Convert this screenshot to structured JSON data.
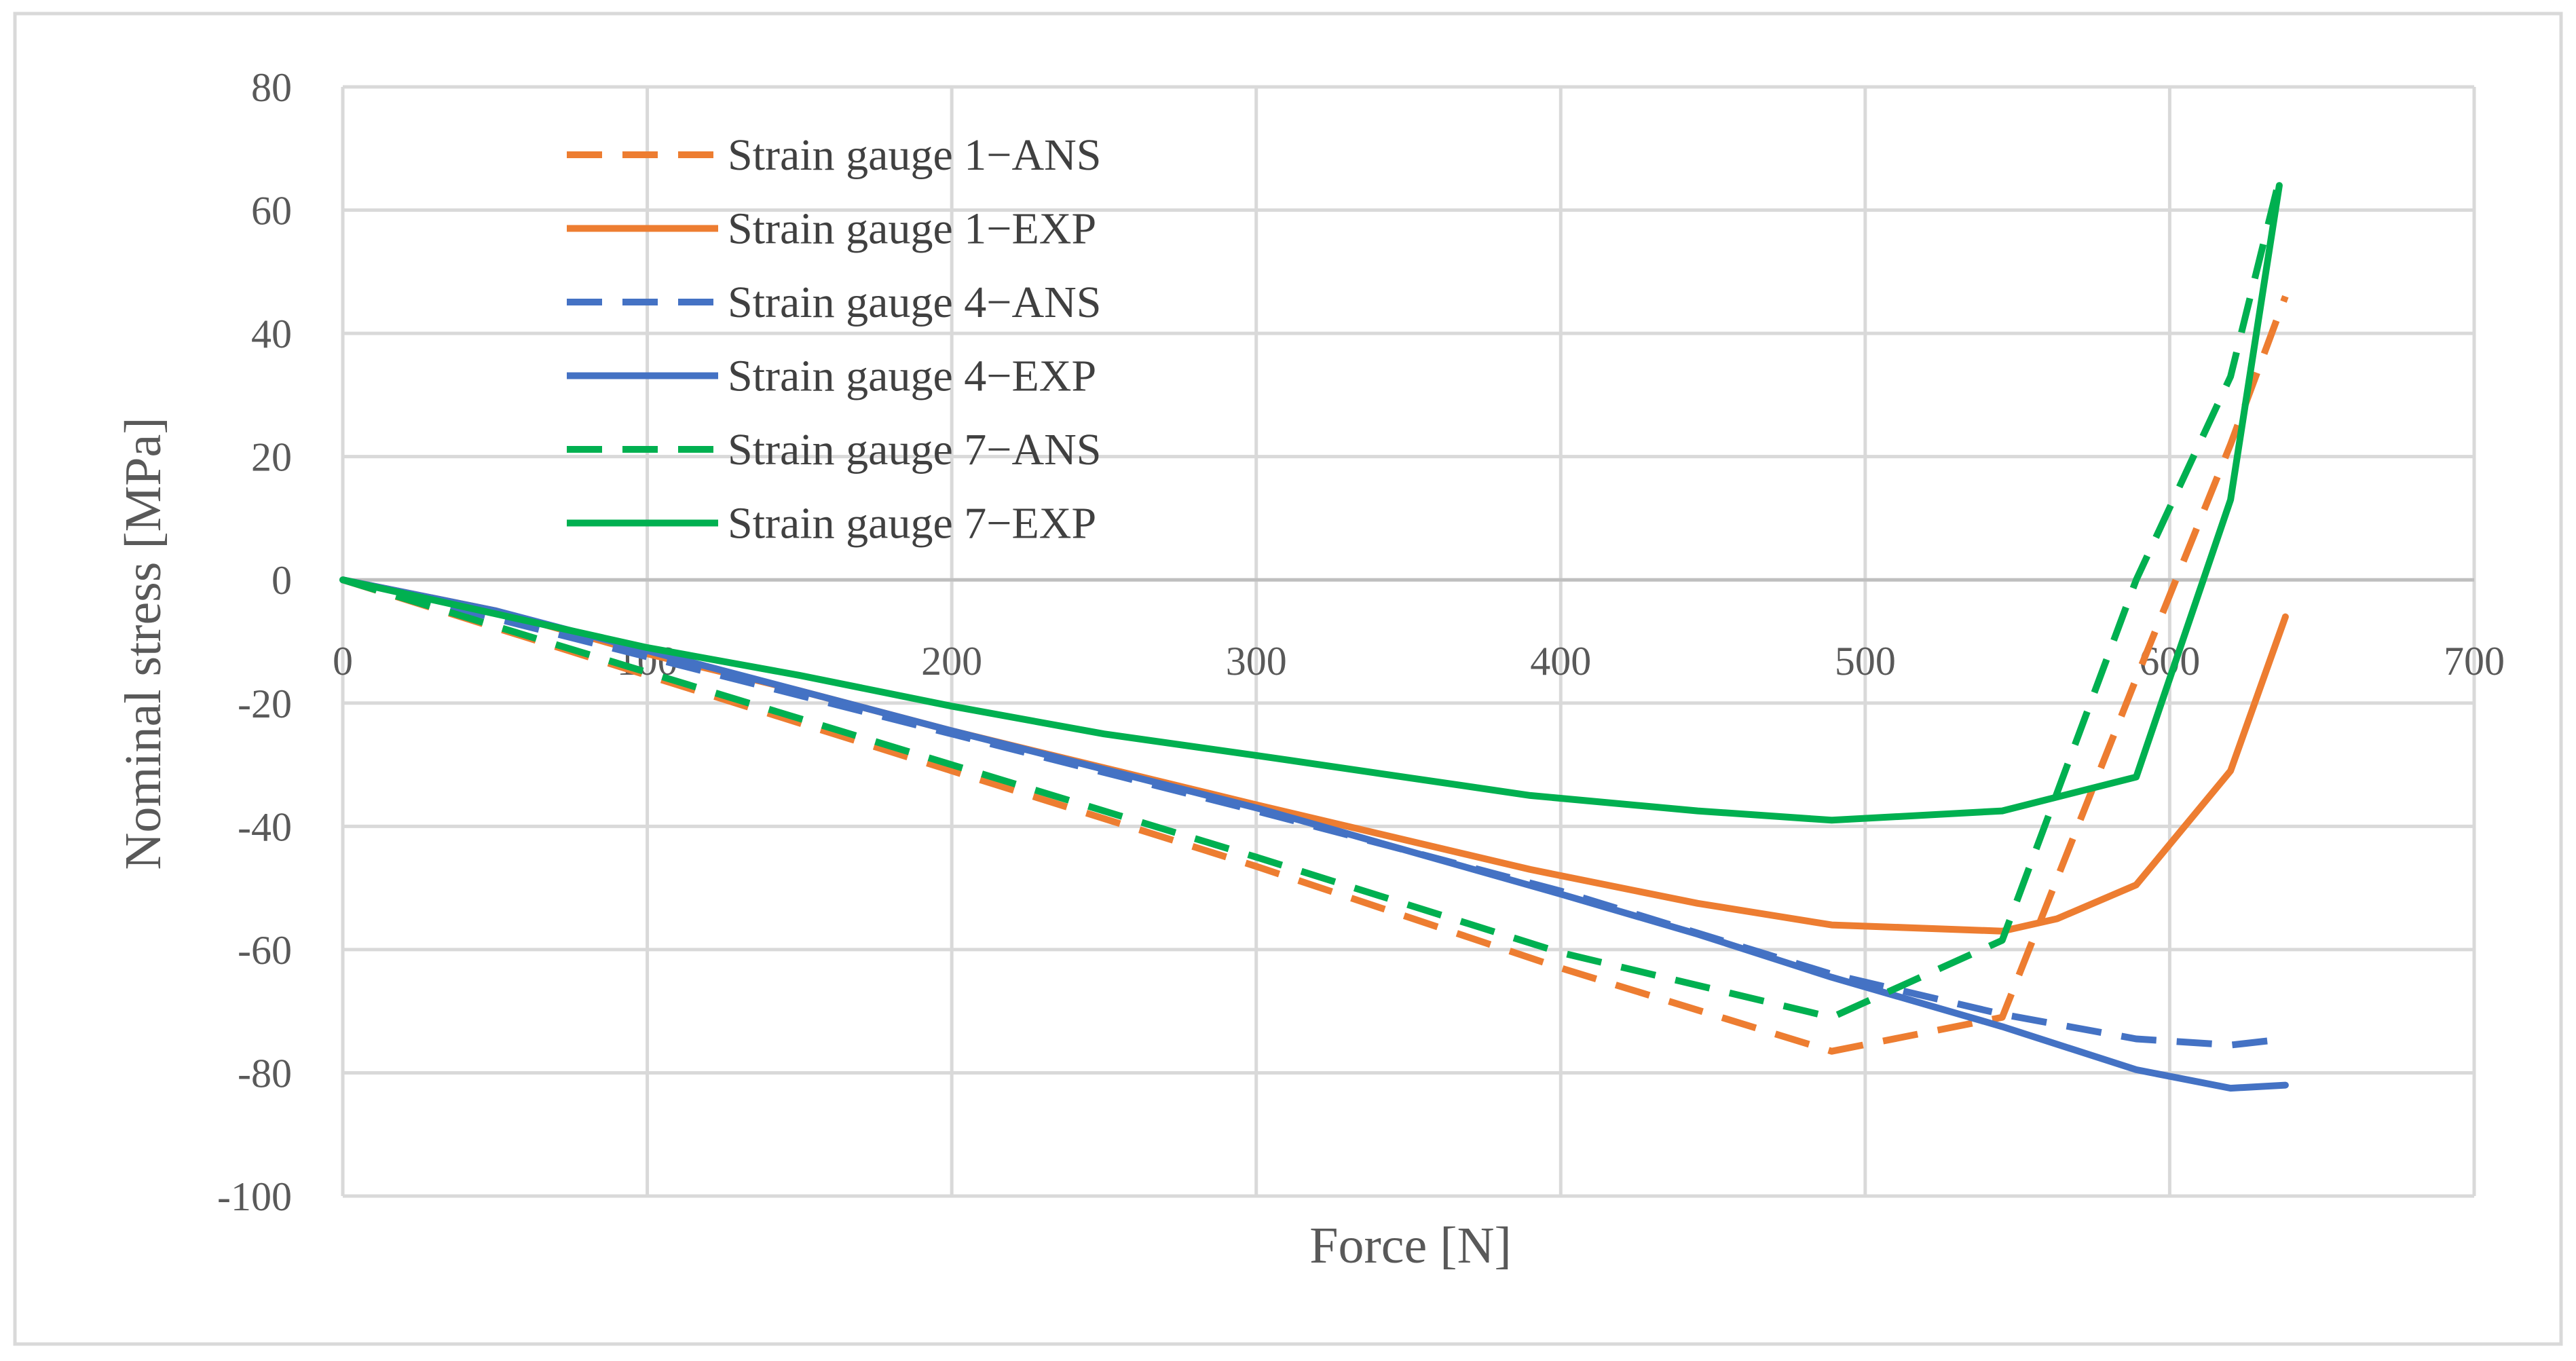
{
  "chart_data": {
    "type": "line",
    "title": "",
    "xlabel": "Force [N]",
    "ylabel": "Nominal stress [MPa]",
    "xlim": [
      0,
      700
    ],
    "ylim": [
      -100,
      80
    ],
    "xticks": [
      0,
      100,
      200,
      300,
      400,
      500,
      600,
      700
    ],
    "yticks": [
      80,
      60,
      40,
      20,
      0,
      -20,
      -40,
      -60,
      -80,
      -100
    ],
    "xtick_labels": [
      "0",
      "100",
      "200",
      "300",
      "400",
      "500",
      "600",
      "700"
    ],
    "ytick_labels": [
      "80",
      "60",
      "40",
      "20",
      "0",
      "-20",
      "-40",
      "-60",
      "-80",
      "-100"
    ],
    "grid": true,
    "legend_position": "top-left",
    "series": [
      {
        "name": "Strain gauge 1−ANS",
        "color": "#ED7D31",
        "dash": "dashed",
        "points": [
          [
            0,
            0
          ],
          [
            100,
            -15.5
          ],
          [
            200,
            -31
          ],
          [
            300,
            -46.5
          ],
          [
            400,
            -63
          ],
          [
            489,
            -76.5
          ],
          [
            545,
            -71
          ],
          [
            589,
            -16
          ],
          [
            620,
            22
          ],
          [
            638,
            46
          ]
        ]
      },
      {
        "name": "Strain gauge 1−EXP",
        "color": "#ED7D31",
        "dash": "solid",
        "points": [
          [
            0,
            0
          ],
          [
            50,
            -5
          ],
          [
            100,
            -12
          ],
          [
            150,
            -18
          ],
          [
            200,
            -24.5
          ],
          [
            300,
            -36.5
          ],
          [
            390,
            -47
          ],
          [
            445,
            -52.5
          ],
          [
            489,
            -56
          ],
          [
            545,
            -57
          ],
          [
            563,
            -55
          ],
          [
            589,
            -49.5
          ],
          [
            620,
            -31
          ],
          [
            638,
            -6
          ]
        ]
      },
      {
        "name": "Strain gauge 4−ANS",
        "color": "#4472C4",
        "dash": "dashed",
        "points": [
          [
            0,
            0
          ],
          [
            100,
            -12.5
          ],
          [
            200,
            -25
          ],
          [
            300,
            -37.5
          ],
          [
            400,
            -50.5
          ],
          [
            489,
            -64
          ],
          [
            545,
            -70.5
          ],
          [
            589,
            -74.5
          ],
          [
            620,
            -75.5
          ],
          [
            638,
            -74.5
          ]
        ]
      },
      {
        "name": "Strain gauge 4−EXP",
        "color": "#4472C4",
        "dash": "solid",
        "points": [
          [
            0,
            0
          ],
          [
            50,
            -5
          ],
          [
            100,
            -11.5
          ],
          [
            150,
            -18
          ],
          [
            200,
            -24.5
          ],
          [
            300,
            -37
          ],
          [
            400,
            -51
          ],
          [
            445,
            -57.5
          ],
          [
            489,
            -64.5
          ],
          [
            545,
            -72.5
          ],
          [
            589,
            -79.5
          ],
          [
            620,
            -82.5
          ],
          [
            638,
            -82
          ]
        ]
      },
      {
        "name": "Strain gauge 7−ANS",
        "color": "#00B050",
        "dash": "dashed",
        "points": [
          [
            0,
            0
          ],
          [
            50,
            -7.5
          ],
          [
            100,
            -15
          ],
          [
            200,
            -30
          ],
          [
            300,
            -45
          ],
          [
            400,
            -60.5
          ],
          [
            489,
            -71
          ],
          [
            545,
            -58.5
          ],
          [
            589,
            0
          ],
          [
            620,
            33
          ],
          [
            636,
            65
          ]
        ]
      },
      {
        "name": "Strain gauge 7−EXP",
        "color": "#00B050",
        "dash": "solid",
        "points": [
          [
            0,
            0
          ],
          [
            50,
            -5.5
          ],
          [
            100,
            -11
          ],
          [
            150,
            -15.5
          ],
          [
            200,
            -20.5
          ],
          [
            250,
            -25
          ],
          [
            300,
            -28.5
          ],
          [
            390,
            -35
          ],
          [
            445,
            -37.5
          ],
          [
            489,
            -39
          ],
          [
            545,
            -37.5
          ],
          [
            589,
            -32
          ],
          [
            620,
            13
          ],
          [
            636,
            64
          ]
        ]
      }
    ]
  }
}
